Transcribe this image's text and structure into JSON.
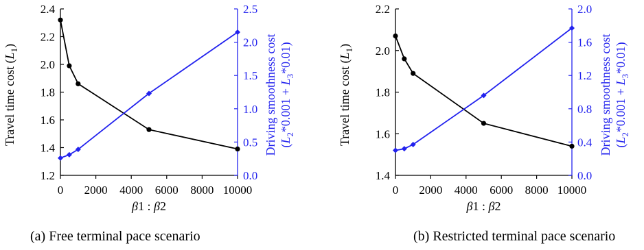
{
  "chart_data": [
    {
      "type": "line",
      "caption": "(a) Free terminal pace scenario",
      "xlabel": "β1 : β2",
      "xlim": [
        0,
        10000
      ],
      "xticks": [
        "0",
        "2000",
        "4000",
        "6000",
        "8000",
        "10000"
      ],
      "ylabel_left": "Travel time cost (L1)",
      "ylim_left": [
        1.2,
        2.4
      ],
      "yticks_left": [
        "1.2",
        "1.4",
        "1.6",
        "1.8",
        "2.0",
        "2.2",
        "2.4"
      ],
      "ylabel_right_line1": "Driving  smoothness cost",
      "ylabel_right_line2": "(L2*0.001 + L3*0.01)",
      "ylim_right": [
        0.0,
        2.5
      ],
      "yticks_right": [
        "0.0",
        "0.5",
        "1.0",
        "1.5",
        "2.0",
        "2.5"
      ],
      "grid": false,
      "colors": {
        "left": "#000000",
        "right": "#2222ee"
      },
      "series": [
        {
          "axis": "left",
          "x": [
            0,
            500,
            1000,
            5000,
            10000
          ],
          "y": [
            2.32,
            1.99,
            1.86,
            1.53,
            1.39
          ]
        },
        {
          "axis": "right",
          "x": [
            0,
            500,
            1000,
            5000,
            10000
          ],
          "y": [
            0.26,
            0.31,
            0.39,
            1.23,
            2.15
          ]
        }
      ]
    },
    {
      "type": "line",
      "caption": "(b) Restricted terminal pace scenario",
      "xlabel": "β1 : β2",
      "xlim": [
        0,
        10000
      ],
      "xticks": [
        "0",
        "2000",
        "4000",
        "6000",
        "8000",
        "10000"
      ],
      "ylabel_left": "Travel time cost (L1)",
      "ylim_left": [
        1.4,
        2.2
      ],
      "yticks_left": [
        "1.4",
        "1.6",
        "1.8",
        "2.0",
        "2.2"
      ],
      "ylabel_right_line1": "Driving  smoothness cost",
      "ylabel_right_line2": "(L2*0.001 + L3*0.01)",
      "ylim_right": [
        0.0,
        2.0
      ],
      "yticks_right": [
        "0.0",
        "0.4",
        "0.8",
        "1.2",
        "1.6",
        "2.0"
      ],
      "grid": false,
      "colors": {
        "left": "#000000",
        "right": "#2222ee"
      },
      "series": [
        {
          "axis": "left",
          "x": [
            0,
            500,
            1000,
            5000,
            10000
          ],
          "y": [
            2.07,
            1.96,
            1.89,
            1.65,
            1.54
          ]
        },
        {
          "axis": "right",
          "x": [
            0,
            500,
            1000,
            5000,
            10000
          ],
          "y": [
            0.3,
            0.32,
            0.37,
            0.96,
            1.77
          ]
        }
      ]
    }
  ]
}
